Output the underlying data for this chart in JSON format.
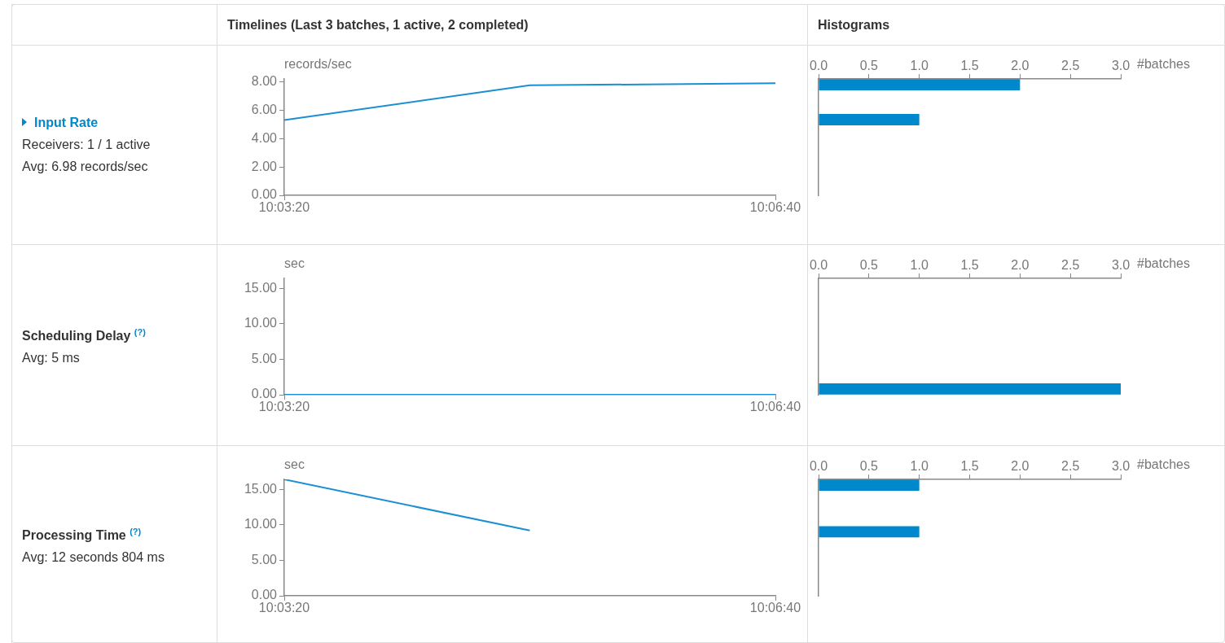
{
  "chart_data": [
    {
      "type": "other",
      "title": "Input Rate",
      "annotations": [
        "Receivers: 1 / 1 active",
        "Avg: 6.98 records/sec"
      ]
    },
    {
      "type": "line",
      "title": "Timelines (Last 3 batches, 1 active, 2 completed)",
      "ylabel": "records/sec",
      "x": [
        10.05556,
        10.08333,
        10.11111
      ],
      "series": [
        {
          "color": "#1a8fd4",
          "values": [
            5.3,
            7.75,
            7.9
          ]
        }
      ],
      "xlim": [
        10.05556,
        10.11111
      ],
      "xticks": [
        {
          "value": 10.05556,
          "label": "10:03:20"
        },
        {
          "value": 10.11111,
          "label": "10:06:40"
        }
      ],
      "ylim": [
        0,
        8.2
      ],
      "yticks": [
        {
          "value": 0,
          "label": "0.00"
        },
        {
          "value": 2,
          "label": "2.00"
        },
        {
          "value": 4,
          "label": "4.00"
        },
        {
          "value": 6,
          "label": "6.00"
        },
        {
          "value": 8,
          "label": "8.00"
        }
      ]
    },
    {
      "type": "bar",
      "title": "Histograms",
      "orientation": "horizontal",
      "xlabel": "#batches",
      "categories": [
        null,
        null,
        null,
        null,
        null,
        null,
        null,
        null,
        null,
        null
      ],
      "series": [
        {
          "color": "#0088cc",
          "values": [
            2,
            0,
            0,
            1,
            0,
            0,
            0,
            0,
            0,
            0
          ]
        }
      ],
      "xlim": [
        0,
        3
      ],
      "xticks": [
        {
          "value": 0,
          "label": "0.0"
        },
        {
          "value": 0.5,
          "label": "0.5"
        },
        {
          "value": 1,
          "label": "1.0"
        },
        {
          "value": 1.5,
          "label": "1.5"
        },
        {
          "value": 2,
          "label": "2.0"
        },
        {
          "value": 2.5,
          "label": "2.5"
        },
        {
          "value": 3,
          "label": "3.0"
        }
      ],
      "tick_labels": "x"
    },
    {
      "type": "other",
      "title": "Scheduling Delay $^{(?)}$",
      "annotations": [
        "Avg: 5 ms"
      ]
    },
    {
      "type": "line",
      "ylabel": "sec",
      "x": [
        10.05556,
        10.08333,
        10.11111
      ],
      "series": [
        {
          "color": "#1a8fd4",
          "values": [
            0,
            0,
            0
          ]
        }
      ],
      "xlim": [
        10.05556,
        10.11111
      ],
      "xticks": [
        {
          "value": 10.05556,
          "label": "10:03:20"
        },
        {
          "value": 10.11111,
          "label": "10:06:40"
        }
      ],
      "ylim": [
        0,
        16.4
      ],
      "yticks": [
        {
          "value": 0,
          "label": "0.00"
        },
        {
          "value": 5,
          "label": "5.00"
        },
        {
          "value": 10,
          "label": "10.00"
        },
        {
          "value": 15,
          "label": "15.00"
        }
      ]
    },
    {
      "type": "bar",
      "orientation": "horizontal",
      "xlabel": "#batches",
      "categories": [
        null,
        null,
        null,
        null,
        null,
        null,
        null,
        null,
        null,
        null
      ],
      "series": [
        {
          "color": "#0088cc",
          "values": [
            0,
            0,
            0,
            0,
            0,
            0,
            0,
            0,
            0,
            3
          ]
        }
      ],
      "xlim": [
        0,
        3
      ],
      "xticks": [
        {
          "value": 0,
          "label": "0.0"
        },
        {
          "value": 0.5,
          "label": "0.5"
        },
        {
          "value": 1,
          "label": "1.0"
        },
        {
          "value": 1.5,
          "label": "1.5"
        },
        {
          "value": 2,
          "label": "2.0"
        },
        {
          "value": 2.5,
          "label": "2.5"
        },
        {
          "value": 3,
          "label": "3.0"
        }
      ],
      "tick_labels": "x"
    },
    {
      "type": "other",
      "title": "Processing Time $^{(?)}$",
      "annotations": [
        "Avg: 12 seconds 804 ms"
      ]
    },
    {
      "type": "line",
      "ylabel": "sec",
      "series": [
        {
          "color": "#1a8fd4",
          "x": [
            10.05556,
            10.08333
          ],
          "values": [
            16.4,
            9.2
          ]
        }
      ],
      "xlim": [
        10.05556,
        10.11111
      ],
      "xticks": [
        {
          "value": 10.05556,
          "label": "10:03:20"
        },
        {
          "value": 10.11111,
          "label": "10:06:40"
        }
      ],
      "ylim": [
        0,
        16.4
      ],
      "yticks": [
        {
          "value": 0,
          "label": "0.00"
        },
        {
          "value": 5,
          "label": "5.00"
        },
        {
          "value": 10,
          "label": "10.00"
        },
        {
          "value": 15,
          "label": "15.00"
        }
      ]
    },
    {
      "type": "bar",
      "orientation": "horizontal",
      "xlabel": "#batches",
      "categories": [
        null,
        null,
        null,
        null,
        null,
        null,
        null,
        null,
        null,
        null
      ],
      "series": [
        {
          "color": "#0088cc",
          "values": [
            1,
            0,
            0,
            0,
            1,
            0,
            0,
            0,
            0,
            0
          ]
        }
      ],
      "xlim": [
        0,
        3
      ],
      "xticks": [
        {
          "value": 0,
          "label": "0.0"
        },
        {
          "value": 0.5,
          "label": "0.5"
        },
        {
          "value": 1,
          "label": "1.0"
        },
        {
          "value": 1.5,
          "label": "1.5"
        },
        {
          "value": 2,
          "label": "2.0"
        },
        {
          "value": 2.5,
          "label": "2.5"
        },
        {
          "value": 3,
          "label": "3.0"
        }
      ],
      "tick_labels": "x"
    }
  ]
}
